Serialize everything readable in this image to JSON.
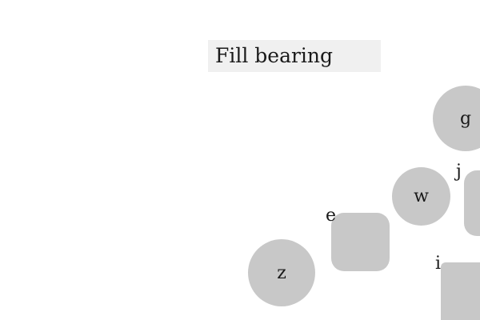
{
  "instruction": "Fill bearing",
  "shapes": [
    {
      "id": "g",
      "label": "g",
      "kind": "circle",
      "color": "#c8c8c8"
    },
    {
      "id": "w",
      "label": "w",
      "kind": "circle",
      "color": "#c8c8c8"
    },
    {
      "id": "z",
      "label": "z",
      "kind": "circle",
      "color": "#c8c8c8"
    },
    {
      "id": "e",
      "label": "e",
      "kind": "rounded-square",
      "color": "#c8c8c8"
    },
    {
      "id": "j",
      "label": "j",
      "kind": "rounded-rect",
      "color": "#c8c8c8"
    },
    {
      "id": "i",
      "label": "i",
      "kind": "rounded-rect",
      "color": "#c8c8c8"
    }
  ]
}
